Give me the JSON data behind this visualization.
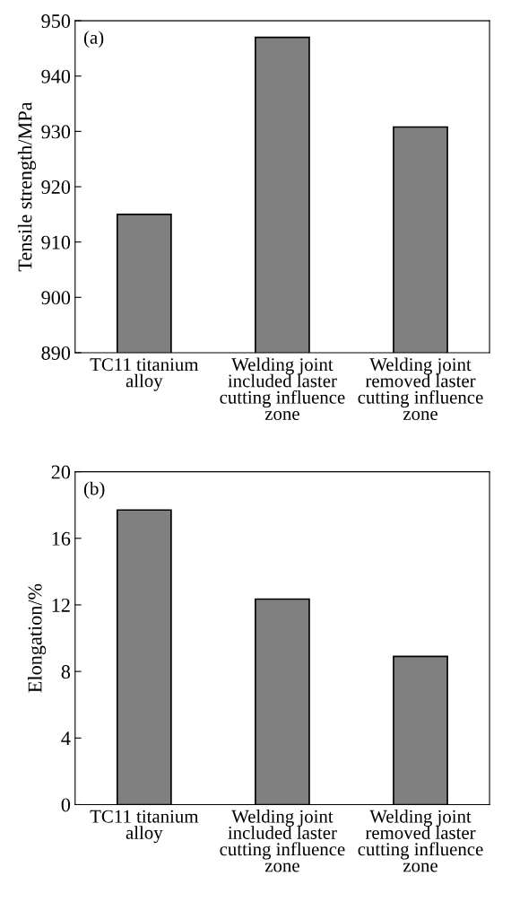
{
  "chart_data": [
    {
      "type": "bar",
      "ylabel": "Tensile strength/MPa",
      "annotations": [
        "(a)"
      ],
      "categories": [
        "TC11 titanium\nalloy",
        "Welding joint\nincluded laster\ncutting influence\nzone",
        "Welding joint\nremoved laster\ncutting influence\nzone"
      ],
      "values": [
        915,
        947,
        930.8
      ],
      "color": "#808080",
      "ylim": [
        890,
        950
      ],
      "yticks": [
        890,
        900,
        910,
        920,
        930,
        940,
        950
      ],
      "grid": false,
      "legend": false
    },
    {
      "type": "bar",
      "ylabel": "Elongation/%",
      "annotations": [
        "(b)"
      ],
      "categories": [
        "TC11 titanium\nalloy",
        "Welding joint\nincluded laster\ncutting influence\nzone",
        "Welding joint\nremoved laster\ncutting influence\nzone"
      ],
      "values": [
        17.7,
        12.35,
        8.9
      ],
      "color": "#808080",
      "ylim": [
        0,
        20
      ],
      "yticks": [
        0,
        4,
        8,
        12,
        16,
        20
      ],
      "grid": false,
      "legend": false
    }
  ]
}
